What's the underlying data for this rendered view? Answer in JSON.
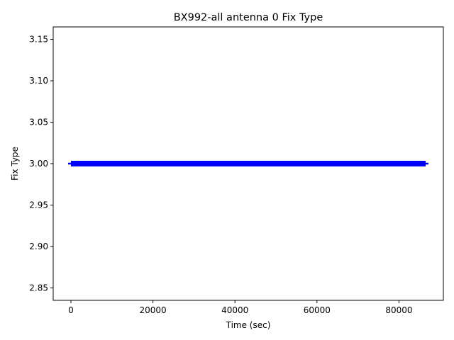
{
  "chart_data": {
    "type": "line",
    "title": "BX992-all antenna 0 Fix Type",
    "xlabel": "Time (sec)",
    "ylabel": "Fix Type",
    "xlim": [
      -4325,
      90825
    ],
    "ylim": [
      2.835,
      3.165
    ],
    "xticks": [
      0,
      20000,
      40000,
      60000,
      80000
    ],
    "xtick_labels": [
      "0",
      "20000",
      "40000",
      "60000",
      "80000"
    ],
    "yticks": [
      2.85,
      2.9,
      2.95,
      3.0,
      3.05,
      3.1,
      3.15
    ],
    "ytick_labels": [
      "2.85",
      "2.90",
      "2.95",
      "3.00",
      "3.05",
      "3.10",
      "3.15"
    ],
    "grid": false,
    "legend": "none",
    "series": [
      {
        "color": "#0000ff",
        "marker": "+",
        "x": [
          0,
          86500
        ],
        "y": [
          3.0,
          3.0
        ]
      }
    ]
  }
}
